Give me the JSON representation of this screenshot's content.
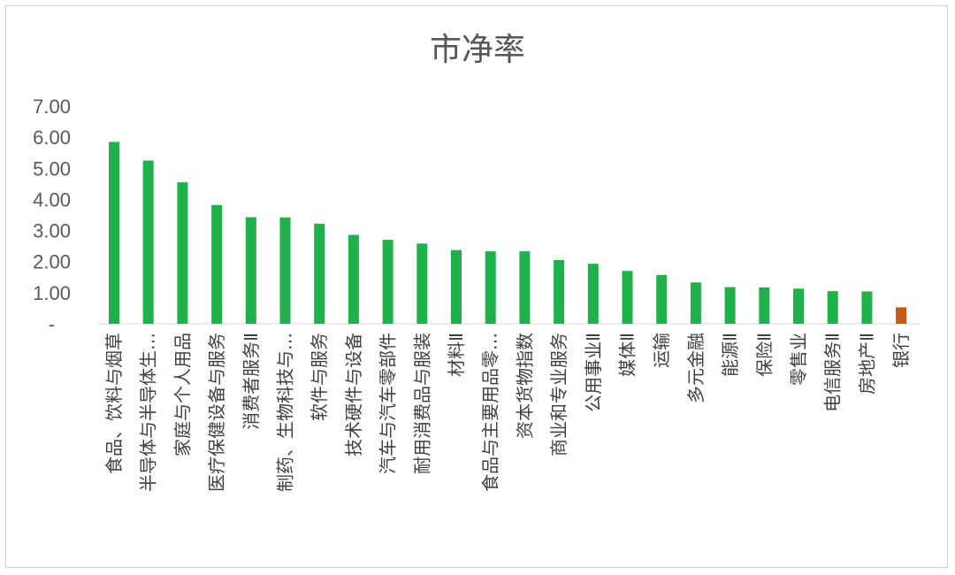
{
  "chart_data": {
    "type": "bar",
    "title": "市净率",
    "xlabel": "",
    "ylabel": "",
    "ylim": [
      0,
      7
    ],
    "y_tick_labels": [
      "-",
      "1.00",
      "2.00",
      "3.00",
      "4.00",
      "5.00",
      "6.00",
      "7.00"
    ],
    "grid": false,
    "legend": "none",
    "categories": [
      "食品、饮料与烟草",
      "半导体与半导体生…",
      "家庭与个人用品",
      "医疗保健设备与服务",
      "消费者服务Ⅱ",
      "制药、生物科技与…",
      "软件与服务",
      "技术硬件与设备",
      "汽车与汽车零部件",
      "耐用消费品与服装",
      "材料Ⅱ",
      "食品与主要用品零…",
      "资本货物指数",
      "商业和专业服务",
      "公用事业Ⅱ",
      "媒体Ⅱ",
      "运输",
      "多元金融",
      "能源Ⅱ",
      "保险Ⅱ",
      "零售业",
      "电信服务Ⅱ",
      "房地产Ⅱ",
      "银行"
    ],
    "values": [
      5.85,
      5.25,
      4.55,
      3.82,
      3.43,
      3.42,
      3.22,
      2.86,
      2.7,
      2.58,
      2.37,
      2.33,
      2.33,
      2.05,
      1.93,
      1.7,
      1.57,
      1.33,
      1.18,
      1.17,
      1.13,
      1.05,
      1.04,
      0.53
    ],
    "colors": {
      "default": "#1fb24a",
      "highlight": "#c55a11",
      "highlight_category": "银行"
    }
  }
}
